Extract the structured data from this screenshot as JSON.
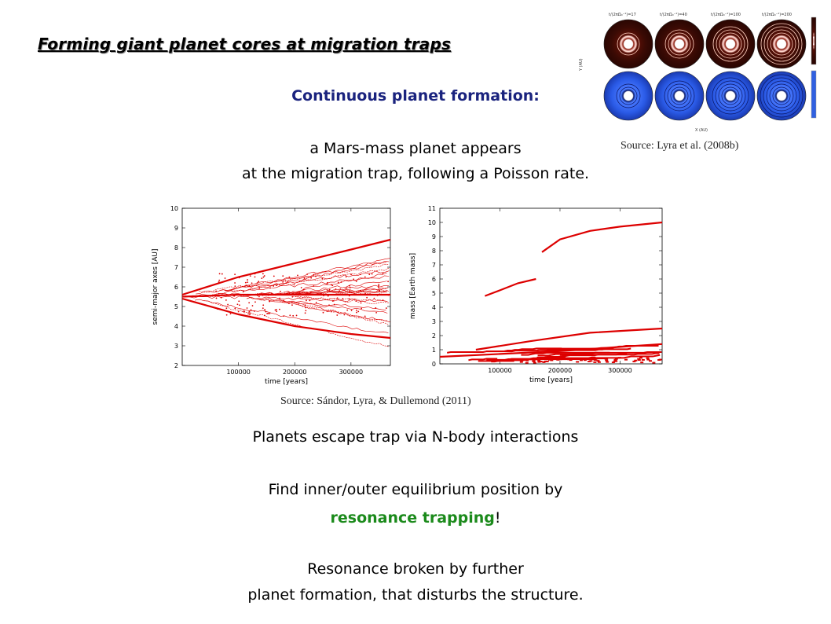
{
  "slide": {
    "title": "Forming giant planet cores at migration traps",
    "subtitle": "Continuous planet formation:",
    "intro_line1": "a Mars-mass planet appears",
    "intro_line2": "at the migration trap, following a Poisson rate.",
    "source_top": "Source: Lyra et al. (2008b)",
    "source_bottom": "Source: Sándor, Lyra, & Dullemond (2011)",
    "bullet1": "Planets escape trap via N-body interactions",
    "bullet2_line1": "Find inner/outer equilibrium position by",
    "bullet2_highlight": "resonance trapping",
    "bullet2_suffix": "!",
    "bullet3_line1": "Resonance broken by further",
    "bullet3_line2": "planet formation, that disturbs the structure.",
    "colors": {
      "title": "#000000",
      "subtitle": "#1a237e",
      "highlight": "#1b8a1b",
      "data": "#dd0000"
    }
  },
  "disk_figure": {
    "top_labels": [
      "t/(2πΩ₀⁻¹)=17",
      "t/(2πΩ₀⁻¹)=40",
      "t/(2πΩ₀⁻¹)=100",
      "t/(2πΩ₀⁻¹)=200"
    ],
    "y_axis_label": "Y (AU)",
    "x_axis_label": "X (AU)"
  },
  "chart_data": [
    {
      "type": "line",
      "xlabel": "time [years]",
      "ylabel": "semi-major axes [AU]",
      "xlim": [
        0,
        370000
      ],
      "ylim": [
        2,
        10
      ],
      "xticks": [
        "100000",
        "200000",
        "300000"
      ],
      "yticks": [
        "2",
        "3",
        "4",
        "5",
        "6",
        "7",
        "8",
        "9",
        "10"
      ],
      "grid": false,
      "series": [
        {
          "x": [
            0,
            100000,
            200000,
            300000,
            370000
          ],
          "values": [
            5.5,
            5.6,
            5.6,
            5.6,
            5.6
          ]
        },
        {
          "x": [
            0,
            100000,
            200000,
            300000,
            370000
          ],
          "values": [
            5.6,
            6.5,
            7.2,
            7.9,
            8.4
          ]
        },
        {
          "x": [
            0,
            100000,
            200000,
            300000,
            370000
          ],
          "values": [
            5.4,
            4.6,
            4.0,
            3.6,
            3.4
          ]
        }
      ]
    },
    {
      "type": "line",
      "xlabel": "time [years]",
      "ylabel": "mass [Earth mass]",
      "xlim": [
        0,
        370000
      ],
      "ylim": [
        0,
        11
      ],
      "xticks": [
        "100000",
        "200000",
        "300000"
      ],
      "yticks": [
        "0",
        "1",
        "2",
        "3",
        "4",
        "5",
        "6",
        "7",
        "8",
        "9",
        "10",
        "11"
      ],
      "grid": false,
      "series": [
        {
          "x": [
            170000,
            200000,
            250000,
            300000,
            370000
          ],
          "values": [
            7.9,
            8.8,
            9.4,
            9.7,
            10.0
          ]
        },
        {
          "x": [
            75000,
            100000,
            130000,
            160000
          ],
          "values": [
            4.8,
            5.2,
            5.7,
            6.0
          ]
        },
        {
          "x": [
            60000,
            150000,
            250000,
            370000
          ],
          "values": [
            1.0,
            1.6,
            2.2,
            2.5
          ]
        },
        {
          "x": [
            0,
            100000,
            200000,
            300000,
            370000
          ],
          "values": [
            0.5,
            0.7,
            0.9,
            1.2,
            1.4
          ]
        }
      ]
    }
  ]
}
